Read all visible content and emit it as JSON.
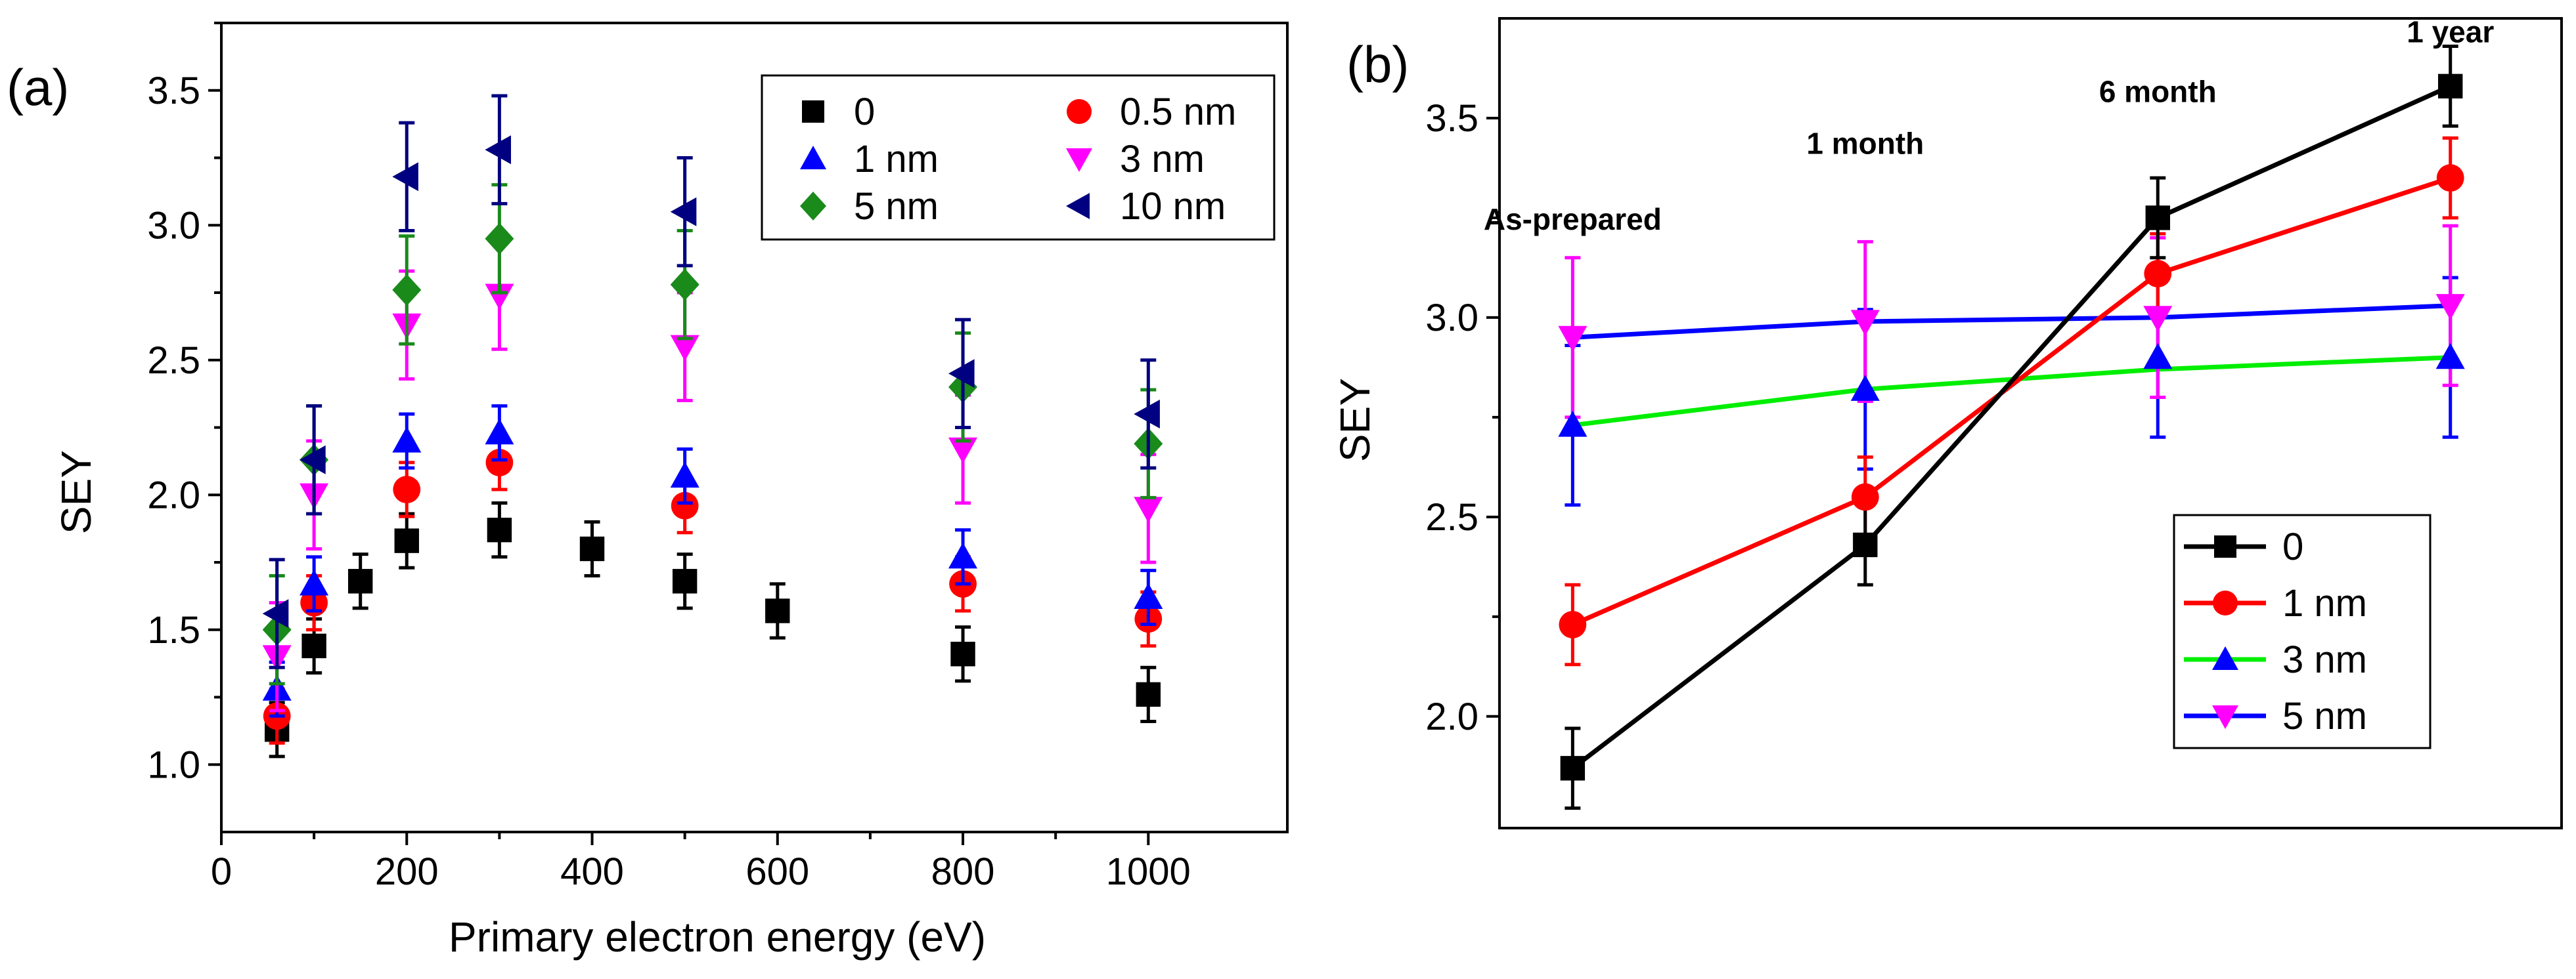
{
  "chart_data": [
    {
      "id": "panel_a",
      "panel_label": "(a)",
      "type": "scatter",
      "xlabel": "Primary electron energy (eV)",
      "ylabel": "SEY",
      "xlim": [
        0,
        1150
      ],
      "ylim": [
        0.75,
        3.75
      ],
      "xticks": [
        0,
        200,
        400,
        600,
        800,
        1000
      ],
      "yticks": [
        1.0,
        1.5,
        2.0,
        2.5,
        3.0,
        3.5
      ],
      "ytick_labels": [
        "1.0",
        "1.5",
        "2.0",
        "2.5",
        "3.0",
        "3.5"
      ],
      "grid": false,
      "legend_position": "top-right",
      "series": [
        {
          "name": "0",
          "marker": "square",
          "color": "#000000",
          "x": [
            60,
            100,
            150,
            200,
            300,
            400,
            500,
            600,
            800,
            1000
          ],
          "y": [
            1.13,
            1.44,
            1.68,
            1.83,
            1.87,
            1.8,
            1.68,
            1.57,
            1.41,
            1.26
          ],
          "err": [
            0.1,
            0.1,
            0.1,
            0.1,
            0.1,
            0.1,
            0.1,
            0.1,
            0.1,
            0.1
          ]
        },
        {
          "name": "0.5 nm",
          "marker": "circle",
          "color": "#ff0000",
          "x": [
            60,
            100,
            200,
            300,
            500,
            800,
            1000
          ],
          "y": [
            1.18,
            1.6,
            2.02,
            2.12,
            1.96,
            1.67,
            1.54
          ],
          "err": [
            0.1,
            0.1,
            0.1,
            0.1,
            0.1,
            0.1,
            0.1
          ]
        },
        {
          "name": "1 nm",
          "marker": "triangle-up",
          "color": "#0000ff",
          "x": [
            60,
            100,
            200,
            300,
            500,
            800,
            1000
          ],
          "y": [
            1.28,
            1.67,
            2.2,
            2.23,
            2.07,
            1.77,
            1.62
          ],
          "err": [
            0.1,
            0.1,
            0.1,
            0.1,
            0.1,
            0.1,
            0.1
          ]
        },
        {
          "name": "3 nm",
          "marker": "triangle-down",
          "color": "#ff00ff",
          "x": [
            60,
            100,
            200,
            300,
            500,
            800,
            1000
          ],
          "y": [
            1.4,
            2.0,
            2.63,
            2.74,
            2.55,
            2.17,
            1.95
          ],
          "err": [
            0.2,
            0.2,
            0.2,
            0.2,
            0.2,
            0.2,
            0.2
          ]
        },
        {
          "name": "5 nm",
          "marker": "diamond",
          "color": "#1a8a1a",
          "x": [
            60,
            100,
            200,
            300,
            500,
            800,
            1000
          ],
          "y": [
            1.5,
            2.13,
            2.76,
            2.95,
            2.78,
            2.4,
            2.19
          ],
          "err": [
            0.2,
            0.2,
            0.2,
            0.2,
            0.2,
            0.2,
            0.2
          ]
        },
        {
          "name": "10 nm",
          "marker": "triangle-left",
          "color": "#000080",
          "x": [
            60,
            100,
            200,
            300,
            500,
            800,
            1000
          ],
          "y": [
            1.56,
            2.13,
            3.18,
            3.28,
            3.05,
            2.45,
            2.3
          ],
          "err": [
            0.2,
            0.2,
            0.2,
            0.2,
            0.2,
            0.2,
            0.2
          ]
        }
      ]
    },
    {
      "id": "panel_b",
      "panel_label": "(b)",
      "type": "line",
      "xlabel": "",
      "ylabel": "SEY",
      "categories": [
        "As-prepared",
        "1 month",
        "6 month",
        "1 year"
      ],
      "xlim": [
        -0.25,
        3.38
      ],
      "ylim": [
        1.72,
        3.75
      ],
      "yticks": [
        2.0,
        2.5,
        3.0,
        3.5
      ],
      "ytick_labels": [
        "2.0",
        "2.5",
        "3.0",
        "3.5"
      ],
      "grid": false,
      "legend_position": "bottom-right",
      "annotations": [
        {
          "text": "As-prepared",
          "x": 0,
          "y": 3.22
        },
        {
          "text": "1 month",
          "x": 1,
          "y": 3.41
        },
        {
          "text": "6 month",
          "x": 2,
          "y": 3.54
        },
        {
          "text": "1 year",
          "x": 3,
          "y": 3.69
        }
      ],
      "series": [
        {
          "name": "0",
          "marker": "square",
          "color": "#000000",
          "y": [
            1.87,
            2.43,
            3.25,
            3.58
          ],
          "err": [
            0.1,
            0.1,
            0.1,
            0.1
          ]
        },
        {
          "name": "1 nm",
          "marker": "circle",
          "color": "#ff0000",
          "y": [
            2.23,
            2.55,
            3.11,
            3.35
          ],
          "err": [
            0.1,
            0.1,
            0.1,
            0.1
          ]
        },
        {
          "name": "3 nm",
          "marker": "triangle-up",
          "color": "#00ee00",
          "y": [
            2.73,
            2.82,
            2.9,
            2.9
          ],
          "err": [
            0.2,
            0.2,
            0.2,
            0.2
          ],
          "line": [
            2.73,
            2.82,
            2.87,
            2.9
          ]
        },
        {
          "name": "5 nm",
          "marker": "triangle-down",
          "color": "#0000ff",
          "y": [
            2.95,
            2.99,
            3.0,
            3.03
          ],
          "err": [
            0.2,
            0.2,
            0.2,
            0.2
          ],
          "line": [
            2.95,
            2.99,
            3.0,
            3.03
          ]
        }
      ]
    }
  ]
}
